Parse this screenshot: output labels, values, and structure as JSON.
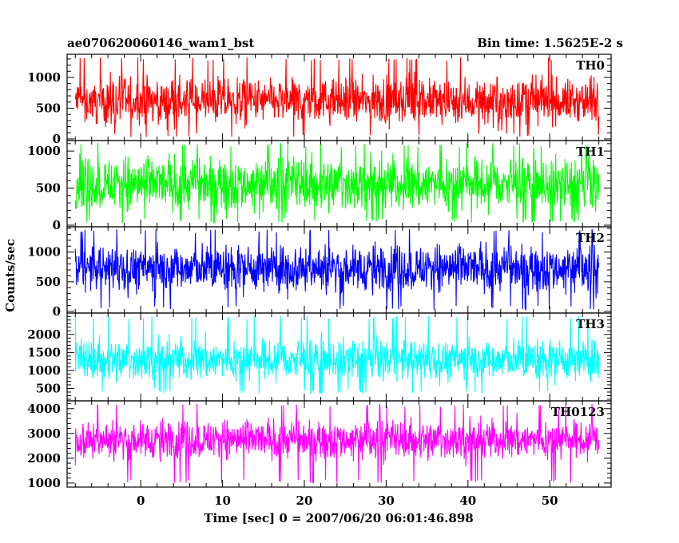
{
  "chart_data": {
    "type": "line",
    "title_left": "ae070620060146_wam1_bst",
    "title_right": "Bin time: 1.5625E-2 s",
    "xlabel": "Time [sec] 0 = 2007/06/20 06:01:46.898",
    "ylabel": "Counts/sec",
    "xlim": [
      -9,
      57.5
    ],
    "x_data_range": [
      -8,
      56
    ],
    "x_ticks": [
      0,
      10,
      20,
      30,
      40,
      50
    ],
    "x_tick_labels": [
      "0",
      "10",
      "20",
      "30",
      "40",
      "50"
    ],
    "series": [
      {
        "name": "TH0",
        "color": "#ff0000",
        "ylim": [
          0,
          1350
        ],
        "y_ticks": [
          0,
          500,
          1000
        ],
        "y_tick_labels": [
          "0",
          "500",
          "1000"
        ],
        "mean": 610,
        "spread": 300,
        "min": 30,
        "max": 1330
      },
      {
        "name": "TH1",
        "color": "#00ff00",
        "ylim": [
          0,
          1120
        ],
        "y_ticks": [
          0,
          500,
          1000
        ],
        "y_tick_labels": [
          "0",
          "500",
          "1000"
        ],
        "mean": 560,
        "spread": 300,
        "min": 30,
        "max": 1110
      },
      {
        "name": "TH2",
        "color": "#0000ff",
        "ylim": [
          0,
          1400
        ],
        "y_ticks": [
          0,
          500,
          1000
        ],
        "y_tick_labels": [
          "0",
          "500",
          "1000"
        ],
        "mean": 730,
        "spread": 330,
        "min": 30,
        "max": 1390
      },
      {
        "name": "TH3",
        "color": "#00ffff",
        "ylim": [
          200,
          2550
        ],
        "y_ticks": [
          500,
          1000,
          1500,
          2000
        ],
        "y_tick_labels": [
          "500",
          "1000",
          "1500",
          "2000"
        ],
        "mean": 1300,
        "spread": 480,
        "min": 350,
        "max": 2520
      },
      {
        "name": "TH0123",
        "color": "#ff00ff",
        "ylim": [
          900,
          4250
        ],
        "y_ticks": [
          1000,
          2000,
          3000,
          4000
        ],
        "y_tick_labels": [
          "1000",
          "2000",
          "3000",
          "4000"
        ],
        "mean": 2750,
        "spread": 650,
        "min": 1000,
        "max": 4200
      }
    ]
  }
}
